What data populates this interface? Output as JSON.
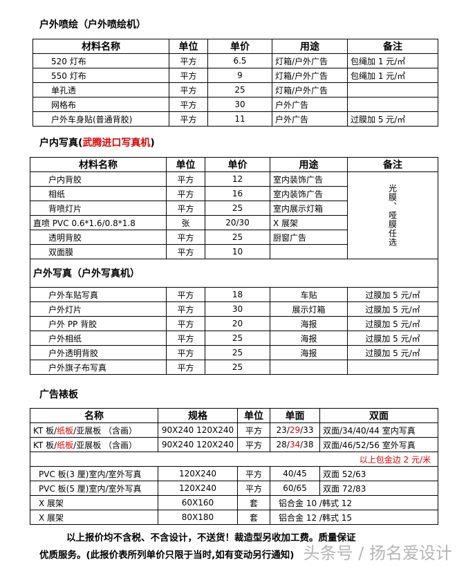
{
  "section1": {
    "title": "户外喷绘（户外喷绘机）",
    "headers": [
      "材料名称",
      "单位",
      "单价",
      "用途",
      "备注"
    ],
    "rows": [
      [
        "520 灯布",
        "平方",
        "6.5",
        "灯箱/户外广告",
        "包绳加 1 元/㎡"
      ],
      [
        "550 灯布",
        "平方",
        "9",
        "灯箱/户外广告",
        "包绳加 1 元/㎡"
      ],
      [
        "单孔透",
        "平方",
        "25",
        "灯箱/户外广告",
        ""
      ],
      [
        "网格布",
        "平方",
        "30",
        "户外广告",
        ""
      ],
      [
        "户外车身贴(普通背胶)",
        "平方",
        "11",
        "户外广告",
        "过膜加 5 元/㎡"
      ]
    ]
  },
  "section2": {
    "title": "户内写真(",
    "title_red": "武腾进口写真机",
    "title_end": ")",
    "headers": [
      "材料名称",
      "单位",
      "单价",
      "用途",
      "备注"
    ],
    "rows": [
      [
        "户内背胶",
        "平方",
        "12",
        "室内装饰广告"
      ],
      [
        "相纸",
        "平方",
        "16",
        "室内装饰广告"
      ],
      [
        "背喷灯片",
        "平方",
        "25",
        "室内展示灯箱"
      ],
      [
        "直喷 PVC 0.6*1.6/0.8*1.8",
        "张",
        "20/30",
        "X 展架"
      ],
      [
        "透明背胶",
        "平方",
        "25",
        "厨窗广告"
      ],
      [
        "双面膜",
        "平方",
        "10",
        ""
      ]
    ],
    "merged_note": "光膜、哑膜任选"
  },
  "section3": {
    "title": "户外写真（户外写真机）",
    "rows": [
      [
        "户外车贴写真",
        "平方",
        "18",
        "车贴",
        "过膜加 5 元/㎡"
      ],
      [
        "户外灯片",
        "平方",
        "30",
        "展示灯箱",
        "过膜加 5 元/㎡"
      ],
      [
        "户外 PP 背胶",
        "平方",
        "20",
        "海报",
        "过膜加 5 元/㎡"
      ],
      [
        "户外相纸",
        "平方",
        "25",
        "海报",
        "过膜加 5 元/㎡"
      ],
      [
        "户外透明背胶",
        "平方",
        "25",
        "海报",
        "过膜加 5 元/㎡"
      ],
      [
        "户外旗子布写真",
        "平方",
        "25",
        "",
        ""
      ]
    ]
  },
  "section4": {
    "title": "广告裱板",
    "headers": [
      "名称",
      "规格",
      "单位",
      "单面",
      "双面"
    ],
    "kt_rows": [
      {
        "name_a": "KT 板/",
        "name_red": "纸板",
        "name_b": "/亚展板 （含画）",
        "spec": "90X240 120X240",
        "unit": "平方",
        "single_a": "23/",
        "single_red": "29",
        "single_b": "/33",
        "double": "双面/34/40/44 室内写真"
      },
      {
        "name_a": "KT 板/",
        "name_red": "纸板",
        "name_b": "/亚展板 （含画）",
        "spec": "90X240 120X240",
        "unit": "平方",
        "single_a": "28/",
        "single_red": "34",
        "single_b": "/38",
        "double": "双面/46/52/56 室外写真"
      }
    ],
    "gold_edge_note": "以上包金边 2 元/米",
    "pvc_rows": [
      [
        "PVC 板(3 厘)室内/室外写真",
        "120X240",
        "平方",
        "40/45",
        "双面 52/63"
      ],
      [
        "PVC 板(5 厘)室内/室外写真",
        "120X240",
        "平方",
        "60/65",
        "双面 72/83"
      ]
    ],
    "x_rows": [
      [
        "X 展架",
        "60X160",
        "套",
        "铝合金 10 /韩式 12"
      ],
      [
        "X 展架",
        "80X180",
        "套",
        "铝合金 12 /韩式 15"
      ]
    ]
  },
  "footer": {
    "line1": "以上报价均不含税、不含设计，不送货！裁造型另收加工费。质量保证",
    "line2": "优质服务。(此报价表所列单价只限于当时,如有变动另行通知)"
  },
  "watermark": "头条号 / 扬名爱设计",
  "colors": {
    "accent_red": "#e00000"
  }
}
